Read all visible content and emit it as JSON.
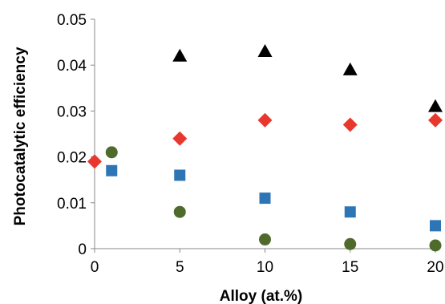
{
  "chart_data": {
    "type": "scatter",
    "title": "",
    "xlabel": "Alloy (at.%)",
    "ylabel": "Photocatalytic efficiency",
    "xlim": [
      0,
      20
    ],
    "ylim": [
      0,
      0.05
    ],
    "xticks": [
      0,
      5,
      10,
      15,
      20
    ],
    "yticks": [
      0,
      0.01,
      0.02,
      0.03,
      0.04,
      0.05
    ],
    "xtick_labels": [
      "0",
      "5",
      "10",
      "15",
      "20"
    ],
    "ytick_labels": [
      "0",
      "0.01",
      "0.02",
      "0.03",
      "0.04",
      "0.05"
    ],
    "grid": false,
    "legend": "none",
    "series": [
      {
        "marker": "triangle",
        "color": "#000000",
        "points": [
          [
            5,
            0.042
          ],
          [
            10,
            0.043
          ],
          [
            15,
            0.039
          ],
          [
            20,
            0.031
          ]
        ]
      },
      {
        "marker": "diamond",
        "color": "#e8382e",
        "points": [
          [
            0,
            0.019
          ],
          [
            5,
            0.024
          ],
          [
            10,
            0.028
          ],
          [
            15,
            0.027
          ],
          [
            20,
            0.028
          ]
        ]
      },
      {
        "marker": "square",
        "color": "#2e75b6",
        "points": [
          [
            1,
            0.017
          ],
          [
            5,
            0.016
          ],
          [
            10,
            0.011
          ],
          [
            15,
            0.008
          ],
          [
            20,
            0.005
          ]
        ]
      },
      {
        "marker": "circle",
        "color": "#4e6b2c",
        "points": [
          [
            1,
            0.021
          ],
          [
            5,
            0.008
          ],
          [
            10,
            0.002
          ],
          [
            15,
            0.001
          ],
          [
            20,
            0.0007
          ]
        ]
      }
    ]
  }
}
